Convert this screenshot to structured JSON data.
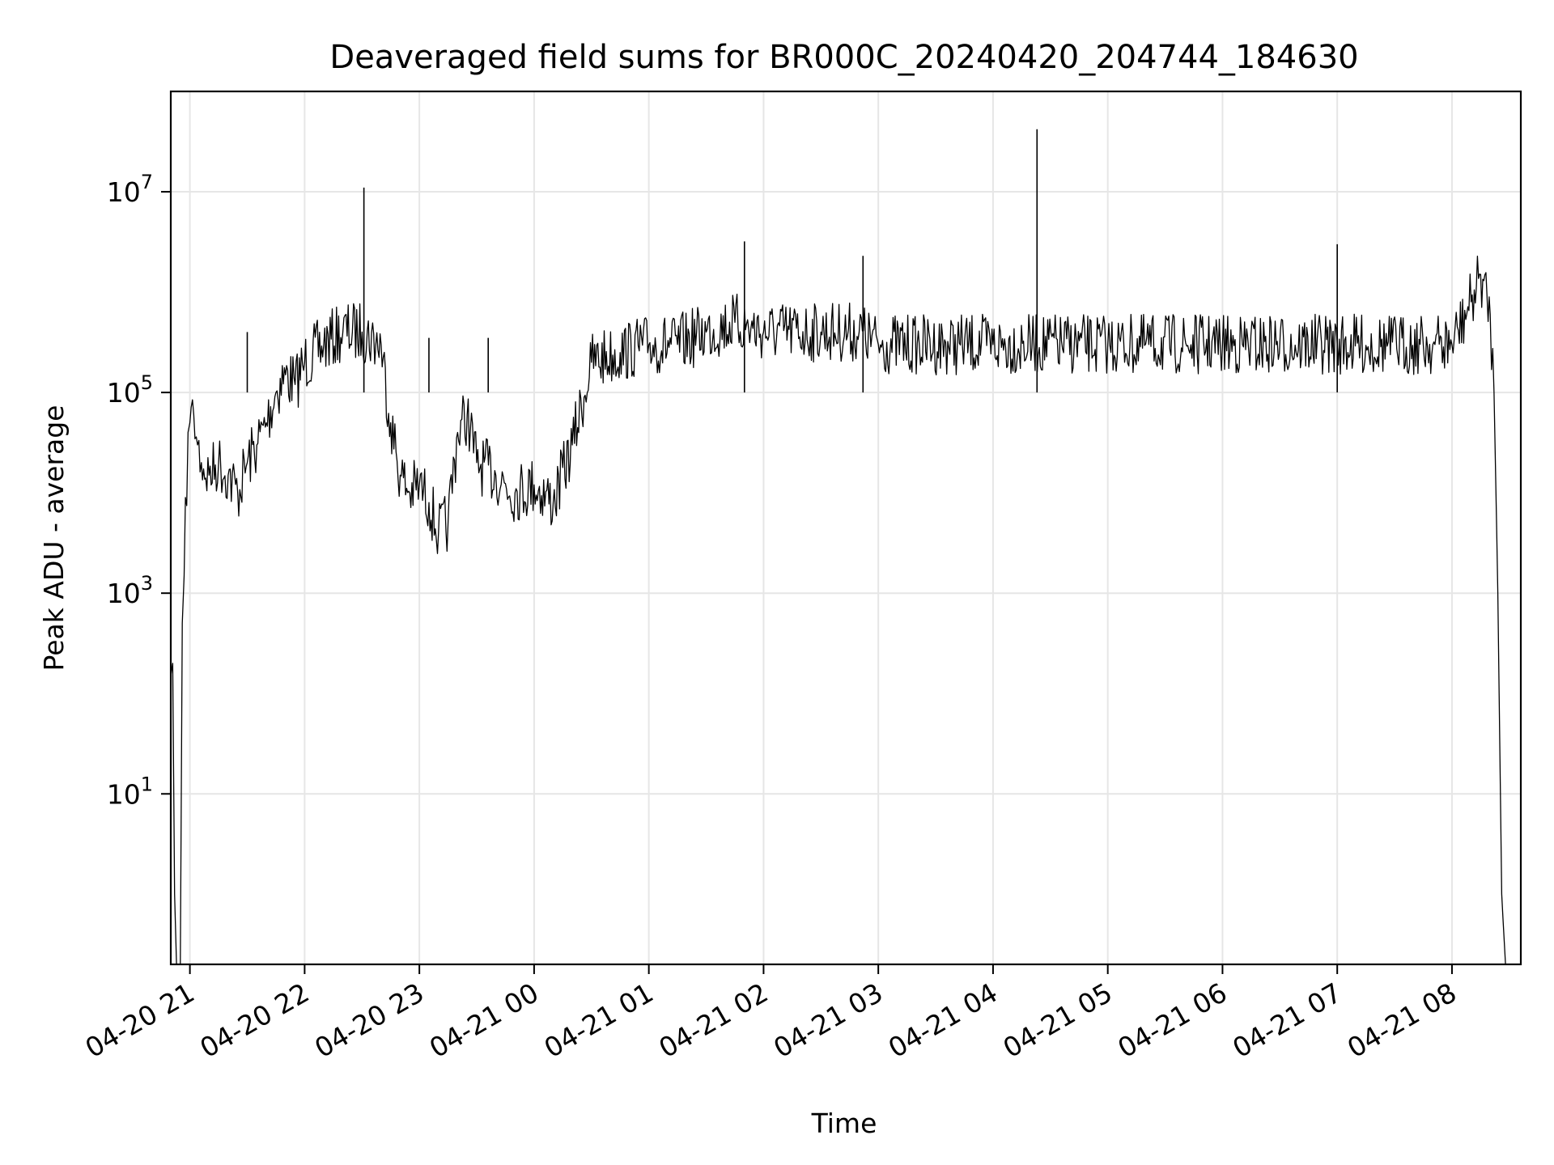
{
  "chart_data": {
    "type": "line",
    "title": "Deaveraged field sums for BR000C_20240420_204744_184630",
    "xlabel": "Time",
    "ylabel": "Peak ADU - average",
    "yscale": "log",
    "grid": true,
    "x_ticks": [
      "04-20 21",
      "04-20 22",
      "04-20 23",
      "04-21 00",
      "04-21 01",
      "04-21 02",
      "04-21 03",
      "04-21 04",
      "04-21 05",
      "04-21 06",
      "04-21 07",
      "04-21 08"
    ],
    "x_tick_times": [
      "2024-04-20 21:00",
      "2024-04-20 22:00",
      "2024-04-20 23:00",
      "2024-04-21 00:00",
      "2024-04-21 01:00",
      "2024-04-21 02:00",
      "2024-04-21 03:00",
      "2024-04-21 04:00",
      "2024-04-21 05:00",
      "2024-04-21 06:00",
      "2024-04-21 07:00",
      "2024-04-21 08:00"
    ],
    "y_ticks": [
      {
        "base": "10",
        "exp": "1",
        "value": 10
      },
      {
        "base": "10",
        "exp": "3",
        "value": 1000
      },
      {
        "base": "10",
        "exp": "5",
        "value": 100000
      },
      {
        "base": "10",
        "exp": "7",
        "value": 10000000
      }
    ],
    "xlim": [
      "2024-04-20 20:50",
      "2024-04-21 08:36"
    ],
    "ylim": [
      0.2,
      100000000.0
    ],
    "line_color": "#000000",
    "series": [
      {
        "x": [
          "2024-04-20 20:50",
          "2024-04-20 20:51",
          "2024-04-20 20:52",
          "2024-04-20 20:53",
          "2024-04-20 20:55",
          "2024-04-20 20:56",
          "2024-04-20 20:57",
          "2024-04-20 20:59",
          "2024-04-20 21:00",
          "2024-04-20 21:02",
          "2024-04-20 21:04",
          "2024-04-20 21:06",
          "2024-04-20 21:10",
          "2024-04-20 21:15",
          "2024-04-20 21:20",
          "2024-04-20 21:25",
          "2024-04-20 21:30",
          "2024-04-20 21:35",
          "2024-04-20 21:40",
          "2024-04-20 21:45",
          "2024-04-20 21:50",
          "2024-04-20 21:55",
          "2024-04-20 22:00",
          "2024-04-20 22:10",
          "2024-04-20 22:20",
          "2024-04-20 22:30",
          "2024-04-20 22:40",
          "2024-04-20 22:45",
          "2024-04-20 22:50",
          "2024-04-20 22:55",
          "2024-04-20 23:00",
          "2024-04-20 23:05",
          "2024-04-20 23:10",
          "2024-04-20 23:15",
          "2024-04-20 23:20",
          "2024-04-20 23:25",
          "2024-04-20 23:30",
          "2024-04-20 23:40",
          "2024-04-20 23:50",
          "2024-04-21 00:00",
          "2024-04-21 00:10",
          "2024-04-21 00:20",
          "2024-04-21 00:30",
          "2024-04-21 00:45",
          "2024-04-21 01:00",
          "2024-04-21 01:15",
          "2024-04-21 01:30",
          "2024-04-21 01:45",
          "2024-04-21 02:00",
          "2024-04-21 02:30",
          "2024-04-21 02:50",
          "2024-04-21 03:00",
          "2024-04-21 04:00",
          "2024-04-21 05:00",
          "2024-04-21 06:00",
          "2024-04-21 07:00",
          "2024-04-21 07:50",
          "2024-04-21 08:00",
          "2024-04-21 08:10",
          "2024-04-21 08:15",
          "2024-04-21 08:20",
          "2024-04-21 08:22",
          "2024-04-21 08:24",
          "2024-04-21 08:26",
          "2024-04-21 08:28"
        ],
        "y": [
          150,
          200,
          1,
          0.2,
          0.2,
          500,
          1500,
          40000,
          50000,
          60000,
          30000,
          20000,
          15000,
          20000,
          15000,
          10000,
          20000,
          30000,
          50000,
          100000,
          150000,
          120000,
          200000,
          300000,
          400000,
          400000,
          300000,
          50000,
          15000,
          10000,
          12000,
          8000,
          4000,
          5000,
          40000,
          60000,
          20000,
          15000,
          10000,
          12000,
          8000,
          30000,
          200000,
          250000,
          300000,
          300000,
          400000,
          500000,
          400000,
          400000,
          400000,
          300000,
          300000,
          300000,
          300000,
          300000,
          300000,
          300000,
          800000,
          1500000,
          600000,
          100000,
          1000,
          1,
          0.2
        ]
      }
    ],
    "spikes": [
      {
        "x": "2024-04-20 21:30",
        "y": 400000
      },
      {
        "x": "2024-04-20 22:31",
        "y": 11000000
      },
      {
        "x": "2024-04-20 23:05",
        "y": 350000
      },
      {
        "x": "2024-04-20 23:36",
        "y": 350000
      },
      {
        "x": "2024-04-21 01:50",
        "y": 3200000
      },
      {
        "x": "2024-04-21 02:52",
        "y": 2300000
      },
      {
        "x": "2024-04-21 04:23",
        "y": 42000000
      },
      {
        "x": "2024-04-21 07:00",
        "y": 3000000
      }
    ]
  }
}
